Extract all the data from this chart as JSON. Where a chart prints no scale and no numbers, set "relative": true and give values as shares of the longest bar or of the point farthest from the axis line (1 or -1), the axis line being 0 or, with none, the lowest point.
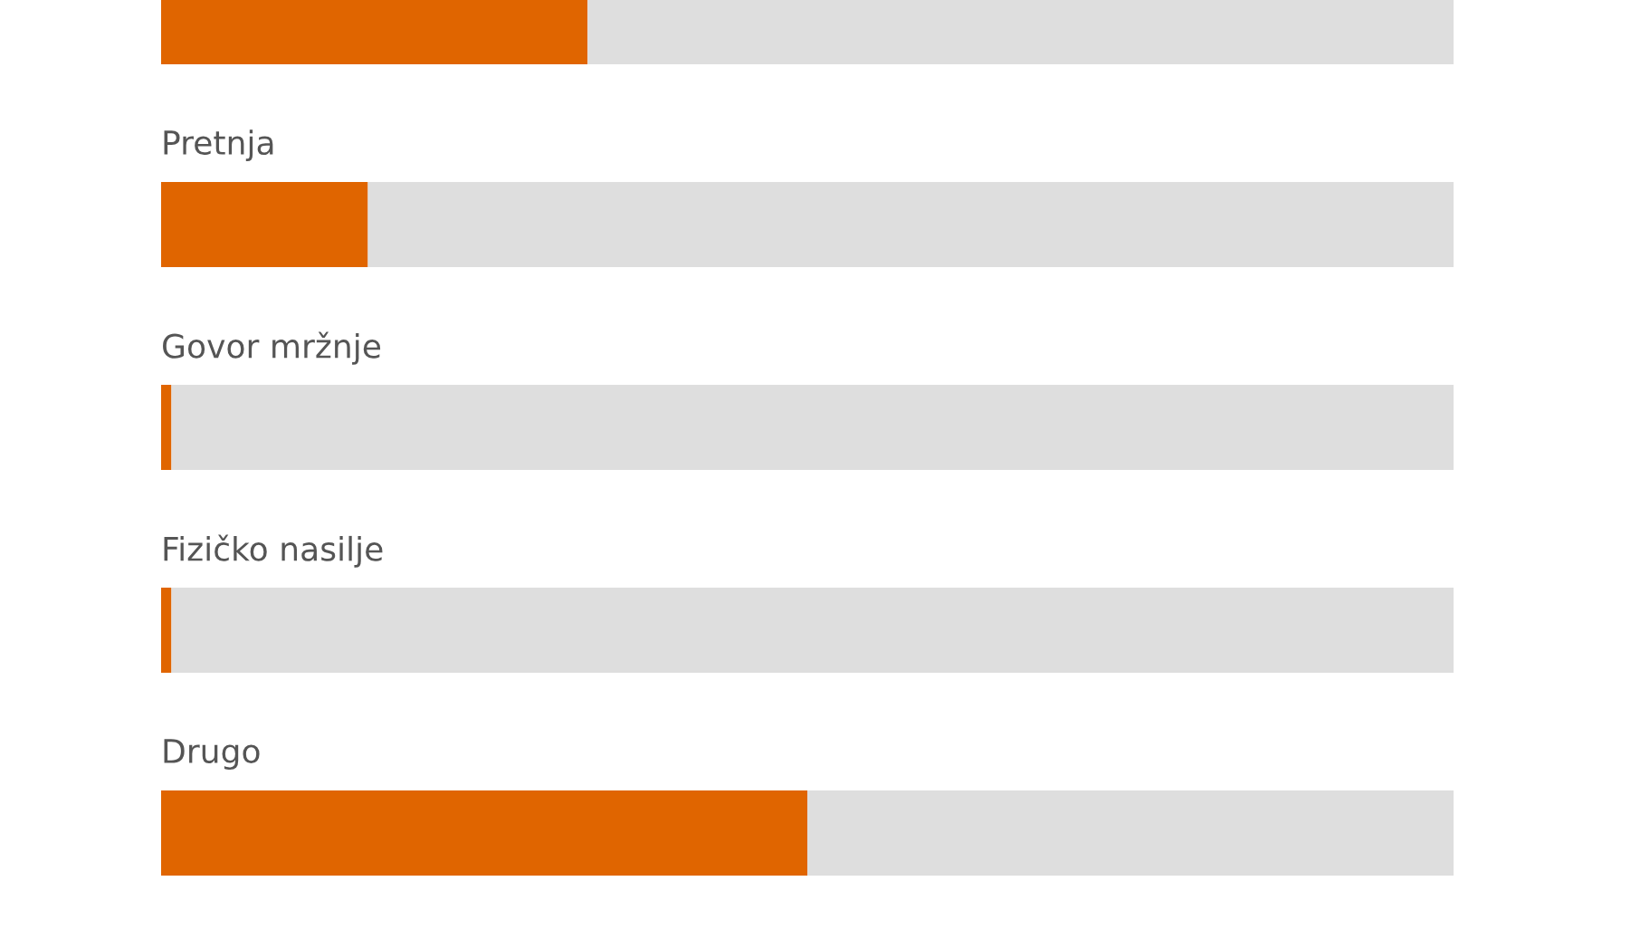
{
  "chart_data": {
    "type": "bar",
    "orientation": "horizontal",
    "stacked": true,
    "relative": true,
    "categories": [
      null,
      "Pretnja",
      "Govor mržnje",
      "Fizičko nasilje",
      "Drugo"
    ],
    "series": [
      {
        "color": "#e06500",
        "values": [
          0.33,
          0.16,
          0.008,
          0.008,
          0.5
        ]
      },
      {
        "color": "#dedede",
        "values": [
          0.67,
          0.84,
          0.992,
          0.992,
          0.5
        ]
      }
    ]
  }
}
